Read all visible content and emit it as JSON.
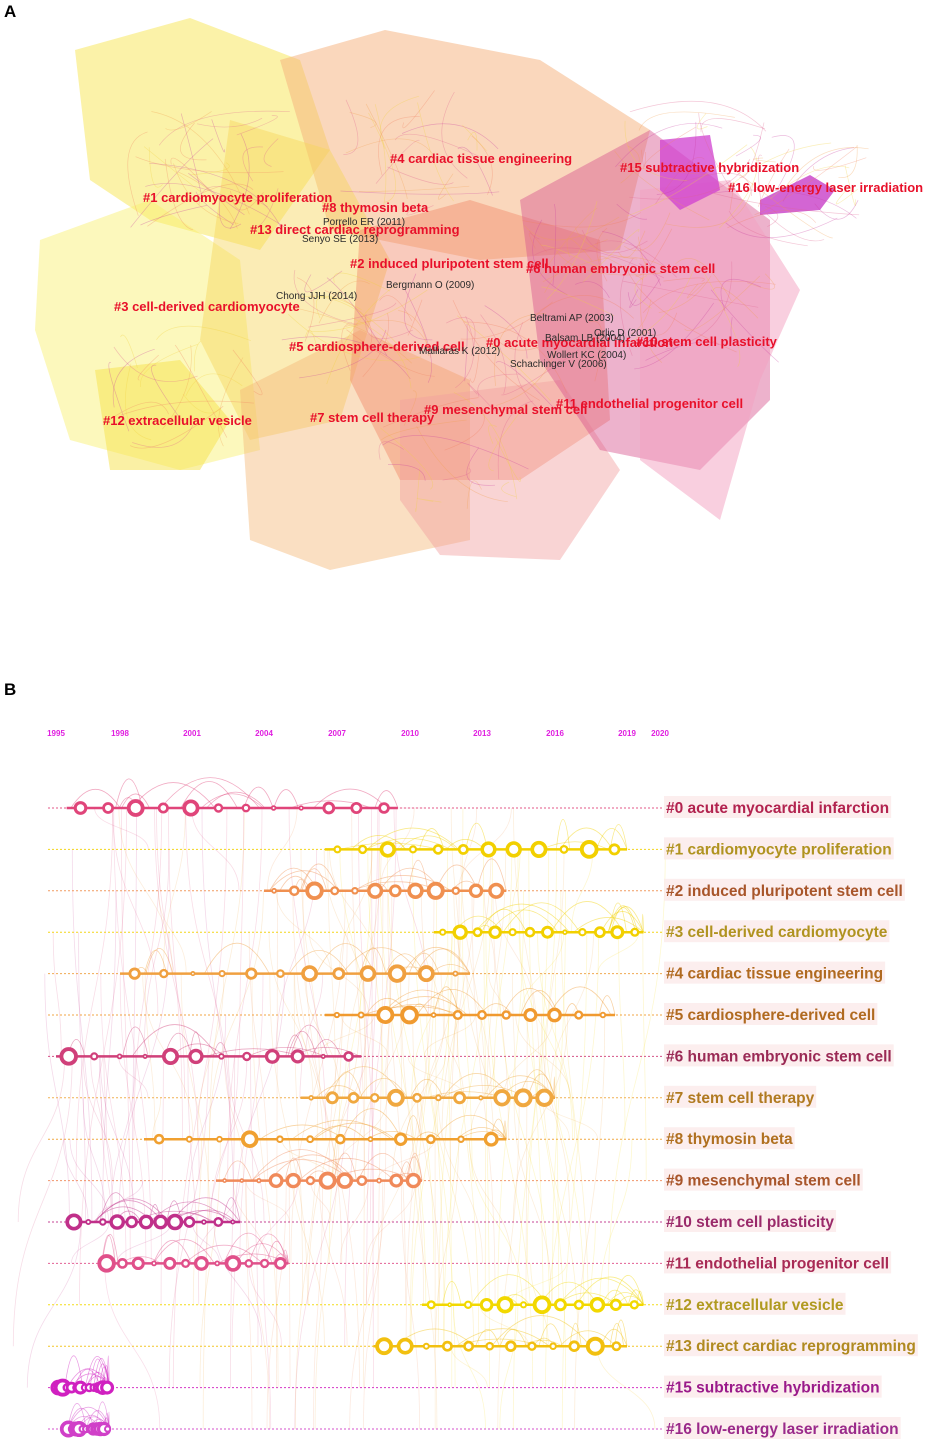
{
  "panel_a": {
    "letter": "A",
    "clusters": [
      {
        "id": "c4",
        "label": "#4 cardiac tissue engineering",
        "color": "#f7b77a"
      },
      {
        "id": "c15",
        "label": "#15 subtractive hybridization",
        "color": "#d94ed7"
      },
      {
        "id": "c16",
        "label": "#16 low-energy laser irradiation",
        "color": "#d94ed7"
      },
      {
        "id": "c1",
        "label": "#1 cardiomyocyte proliferation",
        "color": "#f7e34a"
      },
      {
        "id": "c8",
        "label": "#8 thymosin beta",
        "color": "#f5b35a"
      },
      {
        "id": "c13",
        "label": "#13 direct cardiac reprogramming",
        "color": "#f7e85a"
      },
      {
        "id": "c2",
        "label": "#2 induced pluripotent stem cell",
        "color": "#f29a6a"
      },
      {
        "id": "c6",
        "label": "#6 human embryonic stem cell",
        "color": "#e06a9a"
      },
      {
        "id": "c3",
        "label": "#3 cell-derived cardiomyocyte",
        "color": "#f7ef7a"
      },
      {
        "id": "c5",
        "label": "#5 cardiosphere-derived cell",
        "color": "#f5b35a"
      },
      {
        "id": "c0",
        "label": "#0 acute myocardial infarction",
        "color": "#e8708a"
      },
      {
        "id": "c10",
        "label": "#10 stem cell plasticity",
        "color": "#d25aa0"
      },
      {
        "id": "c12",
        "label": "#12 extracellular vesicle",
        "color": "#f7ea6a"
      },
      {
        "id": "c7",
        "label": "#7 stem cell therapy",
        "color": "#f5c36a"
      },
      {
        "id": "c9",
        "label": "#9 mesenchymal stem cell",
        "color": "#f2a26a"
      },
      {
        "id": "c11",
        "label": "#11 endothelial progenitor cell",
        "color": "#e46aa8"
      }
    ],
    "author_labels": [
      "Porrello ER (2011)",
      "Senyo SE (2013)",
      "Bergmann O (2009)",
      "Chong JJH (2014)",
      "Beltrami AP (2003)",
      "Orlic D (2001)",
      "Balsam LB (2004)",
      "Malliaras K (2012)",
      "Wollert KC (2004)",
      "Schachinger V (2006)"
    ]
  },
  "panel_b": {
    "letter": "B",
    "years": [
      "1995",
      "1998",
      "2001",
      "2004",
      "2007",
      "2010",
      "2013",
      "2016",
      "2019",
      "2020"
    ],
    "timelines": [
      {
        "label": "#0 acute myocardial infarction",
        "color": "#e0457a",
        "text_color": "#b2234f",
        "span": [
          1995.5,
          2009.5
        ]
      },
      {
        "label": "#1 cardiomyocyte proliferation",
        "color": "#f2d000",
        "text_color": "#b09320",
        "span": [
          2006.5,
          2019.0
        ]
      },
      {
        "label": "#2 induced pluripotent stem cell",
        "color": "#f09050",
        "text_color": "#a8552a",
        "span": [
          2004.0,
          2014.0
        ]
      },
      {
        "label": "#3 cell-derived cardiomyocyte",
        "color": "#f2d000",
        "text_color": "#b09320",
        "span": [
          2011.0,
          2019.5
        ]
      },
      {
        "label": "#4 cardiac tissue engineering",
        "color": "#f0a040",
        "text_color": "#b06a20",
        "span": [
          1998.0,
          2012.5
        ]
      },
      {
        "label": "#5 cardiosphere-derived cell",
        "color": "#f09a30",
        "text_color": "#b06a20",
        "span": [
          2006.5,
          2018.5
        ]
      },
      {
        "label": "#6 human embryonic stem cell",
        "color": "#d0407a",
        "text_color": "#9a2a55",
        "span": [
          1995.0,
          2008.0
        ]
      },
      {
        "label": "#7 stem cell therapy",
        "color": "#f0a840",
        "text_color": "#b07a20",
        "span": [
          2005.5,
          2016.0
        ]
      },
      {
        "label": "#8 thymosin beta",
        "color": "#f0a030",
        "text_color": "#b07020",
        "span": [
          1999.0,
          2014.0
        ]
      },
      {
        "label": "#9 mesenchymal stem cell",
        "color": "#f08a5a",
        "text_color": "#a8552a",
        "span": [
          2002.0,
          2010.5
        ]
      },
      {
        "label": "#10 stem cell plasticity",
        "color": "#c0308a",
        "text_color": "#9a2a6a",
        "span": [
          1995.5,
          2003.0
        ]
      },
      {
        "label": "#11 endothelial progenitor cell",
        "color": "#e0508a",
        "text_color": "#a82a55",
        "span": [
          1997.0,
          2005.0
        ]
      },
      {
        "label": "#12 extracellular vesicle",
        "color": "#f2d800",
        "text_color": "#b09a20",
        "span": [
          2010.5,
          2019.5
        ]
      },
      {
        "label": "#13 direct cardiac reprogramming",
        "color": "#f2c010",
        "text_color": "#b08a20",
        "span": [
          2008.5,
          2019.0
        ]
      },
      {
        "label": "#15 subtractive hybridization",
        "color": "#d020c0",
        "text_color": "#9a1a8a",
        "span": [
          1995.0,
          1997.5
        ]
      },
      {
        "label": "#16 low-energy laser irradiation",
        "color": "#d040c8",
        "text_color": "#9a2a8a",
        "span": [
          1995.5,
          1997.5
        ]
      }
    ]
  }
}
